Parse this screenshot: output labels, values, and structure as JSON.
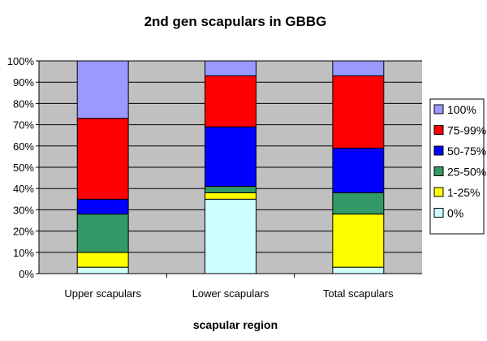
{
  "chart_data": {
    "type": "bar",
    "stacked": true,
    "title": "2nd gen scapulars in GBBG",
    "xlabel": "scapular region",
    "ylabel": "",
    "ylim": [
      0,
      100
    ],
    "y_format": "percent",
    "y_ticks": [
      0,
      10,
      20,
      30,
      40,
      50,
      60,
      70,
      80,
      90,
      100
    ],
    "categories": [
      "Upper scapulars",
      "Lower scapulars",
      "Total scapulars"
    ],
    "series": [
      {
        "name": "0%",
        "color": "#ccffff",
        "values": [
          3,
          35,
          3
        ]
      },
      {
        "name": "1-25%",
        "color": "#ffff00",
        "values": [
          7,
          3,
          25
        ]
      },
      {
        "name": "25-50%",
        "color": "#339966",
        "values": [
          18,
          3,
          10
        ]
      },
      {
        "name": "50-75%",
        "color": "#0000ff",
        "values": [
          7,
          28,
          21
        ]
      },
      {
        "name": "75-99%",
        "color": "#ff0000",
        "values": [
          38,
          24,
          34
        ]
      },
      {
        "name": "100%",
        "color": "#9999ff",
        "values": [
          27,
          7,
          7
        ]
      }
    ],
    "grid": true,
    "plot_background": "#c0c0c0",
    "legend_position": "right"
  }
}
